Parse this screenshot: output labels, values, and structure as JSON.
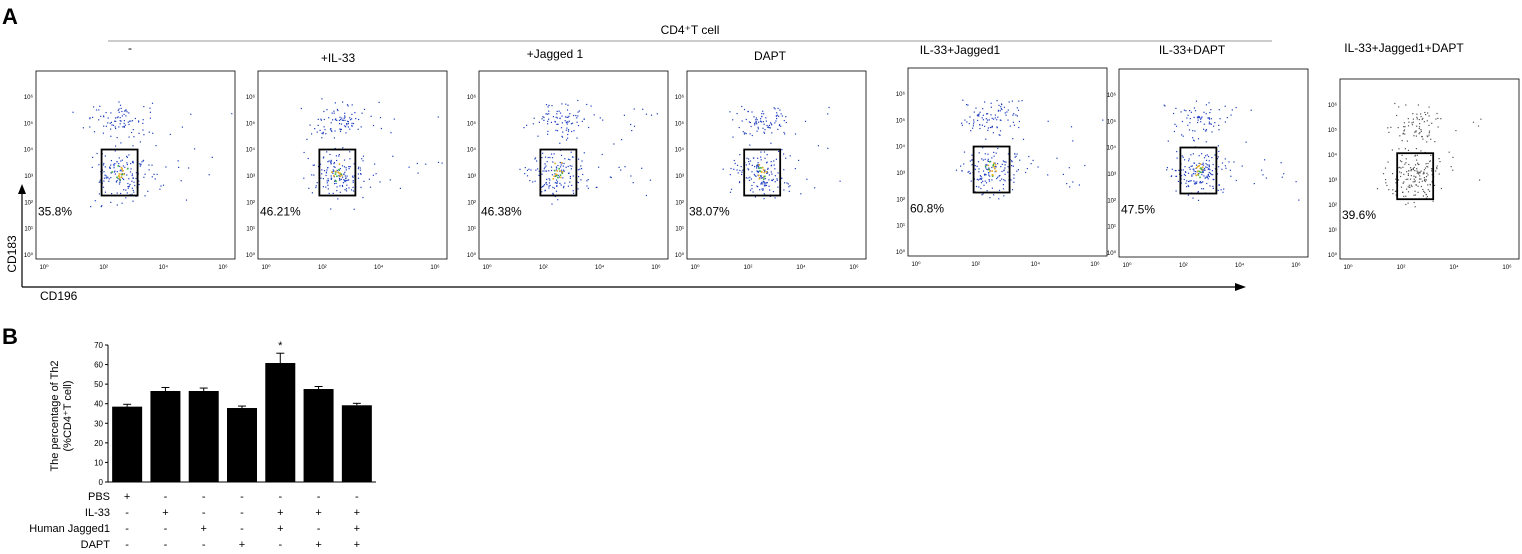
{
  "panel_a": {
    "letter": "A",
    "header": "CD4⁺T cell",
    "y_axis_label": "CD183",
    "x_axis_label": "CD196",
    "plots": [
      {
        "label": "-",
        "percent": "35.8%"
      },
      {
        "label": "+IL-33",
        "percent": "46.21%"
      },
      {
        "label": "+Jagged 1",
        "percent": "46.38%"
      },
      {
        "label": "DAPT",
        "percent": "38.07%"
      },
      {
        "label": "IL-33+Jagged1",
        "percent": "60.8%"
      },
      {
        "label": "IL-33+DAPT",
        "percent": "47.5%"
      },
      {
        "label": "IL-33+Jagged1+DAPT",
        "percent": "39.6%"
      }
    ],
    "y_ticks": [
      "10⁶",
      "10⁵",
      "10⁴",
      "10³",
      "10²",
      "10¹",
      "10⁰"
    ],
    "x_ticks": [
      "10⁰",
      "10²",
      "10⁴",
      "10⁶"
    ],
    "colors": {
      "dots": "#1f3fbf",
      "core": "#e8b020",
      "gray_dots": "#555555"
    }
  },
  "chart_data": {
    "type": "bar",
    "panel_letter": "B",
    "ylabel": "The percentage of Th2 (%CD4⁺T cell)",
    "ylabel_line1": "The percentage of Th2",
    "ylabel_line2": "(%CD4⁺T cell)",
    "ylim": [
      0,
      70
    ],
    "yticks": [
      0,
      10,
      20,
      30,
      40,
      50,
      60,
      70
    ],
    "values": [
      38.5,
      46.5,
      46.5,
      37.8,
      60.8,
      47.5,
      39.2
    ],
    "errors": [
      1.2,
      1.8,
      1.5,
      1.0,
      5.0,
      1.3,
      1.0
    ],
    "annotations": [
      "",
      "",
      "",
      "",
      "*",
      "",
      ""
    ],
    "bar_color": "#000000",
    "conditions": [
      {
        "name": "PBS",
        "marks": [
          "+",
          "-",
          "-",
          "-",
          "-",
          "-",
          "-"
        ]
      },
      {
        "name": "IL-33",
        "marks": [
          "-",
          "+",
          "-",
          "-",
          "+",
          "+",
          "+"
        ]
      },
      {
        "name": "Human Jagged1",
        "marks": [
          "-",
          "-",
          "+",
          "-",
          "+",
          "-",
          "+"
        ]
      },
      {
        "name": "DAPT",
        "marks": [
          "-",
          "-",
          "-",
          "+",
          "-",
          "+",
          "+"
        ]
      }
    ]
  }
}
